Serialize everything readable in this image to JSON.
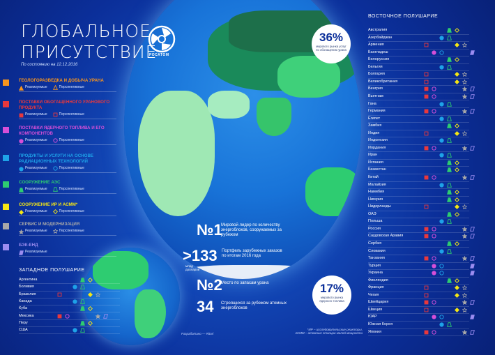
{
  "header": {
    "title_line1": "ГЛОБАЛЬНОЕ",
    "title_line2": "ПРИСУТСТВИЕ",
    "date": "По состоянию на 12.12.2016",
    "logo_text": "РОСАТОМ"
  },
  "colors": {
    "uranium": "#f7941d",
    "conversion": "#e8383d",
    "fuel": "#d64fd8",
    "radiation": "#1ea2e8",
    "npp": "#2ecc71",
    "research": "#f5e614",
    "service": "#a8a8a8",
    "backend": "#9b8cf0"
  },
  "categories": [
    {
      "key": "uranium",
      "name": "ГЕОЛОГОРАЗВЕДКА И ДОБЫЧА УРАНА",
      "realized": "Реализуемые",
      "perspective": "Перспективные",
      "symbol": "triangle"
    },
    {
      "key": "conversion",
      "name": "ПОСТАВКИ ОБОГАЩЕННОГО УРАНОВОГО ПРОДУКТА",
      "realized": "Реализуемые",
      "perspective": "Перспективные",
      "symbol": "square"
    },
    {
      "key": "fuel",
      "name": "ПОСТАВКИ ЯДЕРНОГО ТОПЛИВА И ЕГО КОМПОНЕНТОВ",
      "realized": "Реализуемые",
      "perspective": "Перспективные",
      "symbol": "circle"
    },
    {
      "key": "radiation",
      "name": "ПРОДУКТЫ И УСЛУГИ НА ОСНОВЕ РАДИАЦИОННЫХ ТЕХНОЛОГИЙ",
      "realized": "Реализуемые",
      "perspective": "Перспективные",
      "symbol": "circle"
    },
    {
      "key": "npp",
      "name": "СООРУЖЕНИЕ АЭС",
      "realized": "Реализуемые",
      "perspective": "Перспективные",
      "symbol": "trap"
    },
    {
      "key": "research",
      "name": "СООРУЖЕНИЕ ИР И АСММ*",
      "realized": "Реализуемые",
      "perspective": "Перспективные",
      "symbol": "diamond"
    },
    {
      "key": "service",
      "name": "СЕРВИС И МОДЕРНИЗАЦИЯ",
      "realized": "Реализуемые",
      "perspective": "Перспективные",
      "symbol": "star"
    },
    {
      "key": "backend",
      "name": "БЭК-ЕНД",
      "realized": "Реализуемые",
      "perspective": "",
      "symbol": "para"
    }
  ],
  "west": {
    "heading": "ЗАПАДНОЕ ПОЛУШАРИЕ",
    "countries": [
      "Аргентина",
      "Боливия",
      "Бразилия",
      "Канада",
      "Куба",
      "Мексика",
      "Перу",
      "США"
    ]
  },
  "east": {
    "heading": "ВОСТОЧНОЕ ПОЛУШАРИЕ",
    "countries": [
      "Австралия",
      "Азербайджан",
      "Армения",
      "Бангладеш",
      "Белоруссия",
      "Бельгия",
      "Болгария",
      "Великобритания",
      "Венгрия",
      "Вьетнам",
      "Гана",
      "Германия",
      "Египет",
      "Замбия",
      "Индия",
      "Индонезия",
      "Иордания",
      "Иран",
      "Испания",
      "Казахстан",
      "Китай",
      "Малайзия",
      "Намибия",
      "Нигерия",
      "Нидерланды",
      "ОАЭ",
      "Польша",
      "Россия",
      "Саудовская Аравия",
      "Сербия",
      "Словакия",
      "Танзания",
      "Турция",
      "Украина",
      "Финляндия",
      "Франция",
      "Чехия",
      "Швейцария",
      "Швеция",
      "ЮАР",
      "Южная Корея",
      "Япония"
    ]
  },
  "badges": {
    "enrich": {
      "num": "36%",
      "text": "мирового рынка услуг по обогащению урана"
    },
    "fuel": {
      "num": "17%",
      "text": "мирового рынка ядерного топлива"
    }
  },
  "stats": [
    {
      "big": "№1",
      "desc": "Мировой лидер по количеству энергоблоков, сооружаемых за рубежом",
      "sub": ""
    },
    {
      "big": ">133",
      "desc": "Портфель зарубежных заказов по итогам 2016 года",
      "sub": "млрд долларов"
    },
    {
      "big": "№2",
      "desc": "Место по запасам урана",
      "sub": ""
    },
    {
      "big": "34",
      "desc": "Строящихся за рубежом атомных энергоблоков",
      "sub": ""
    }
  ],
  "footnote": {
    "line1": "*ИР – исследовательские реакторы,",
    "line2": "АСММ – атомные станции малой мощности",
    "credit": "Разработано — Ritori"
  }
}
